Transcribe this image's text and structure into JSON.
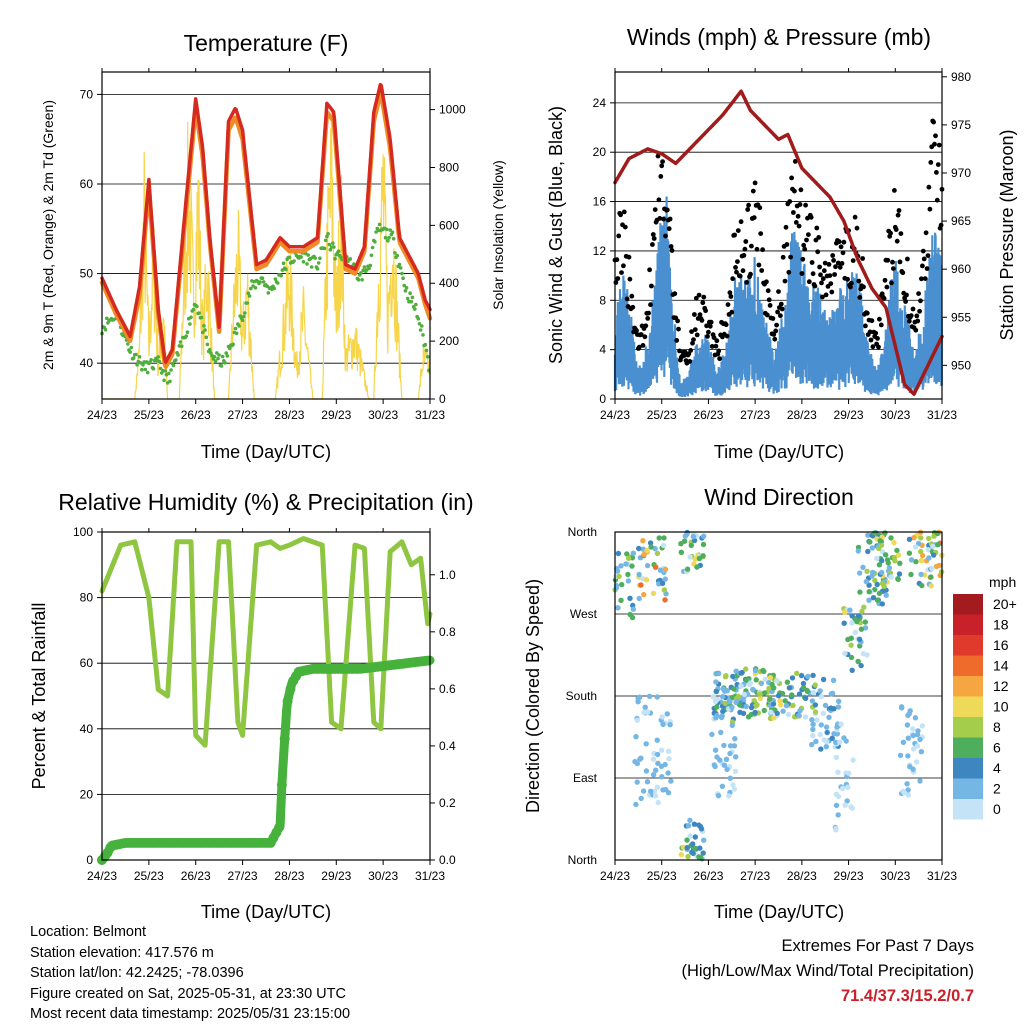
{
  "time_ticks": [
    "24/23",
    "25/23",
    "26/23",
    "27/23",
    "28/23",
    "29/23",
    "30/23",
    "31/23"
  ],
  "colors": {
    "t2m": "#d42a20",
    "t9m": "#f08a24",
    "td": "#4fae3c",
    "solar": "#f7d54a",
    "gust": "#000000",
    "wind": "#4a8fd0",
    "pressure": "#a01c1c",
    "rh": "#8ec641",
    "precip": "#46b13b",
    "extremes": "#c8212a"
  },
  "chart_data": [
    {
      "id": "temperature",
      "type": "line",
      "title": "Temperature (F)",
      "xlabel": "Time (Day/UTC)",
      "ylabel": "2m & 9m T (Red, Orange) & 2m Td (Green)",
      "y2label": "Solar Insolation (Yellow)",
      "ylim": [
        36,
        72.5
      ],
      "y2lim": [
        0,
        1130
      ],
      "yticks": [
        40,
        50,
        60,
        70
      ],
      "y2ticks": [
        0,
        200,
        400,
        600,
        800,
        1000
      ],
      "x_range": [
        0,
        7
      ],
      "series": [
        {
          "key": "t2m",
          "x": [
            0,
            0.3,
            0.6,
            0.8,
            1.0,
            1.2,
            1.35,
            1.5,
            1.8,
            2.0,
            2.15,
            2.3,
            2.5,
            2.7,
            2.85,
            3.0,
            3.3,
            3.5,
            3.8,
            4.0,
            4.3,
            4.6,
            4.8,
            4.95,
            5.2,
            5.4,
            5.6,
            5.8,
            5.95,
            6.15,
            6.35,
            6.55,
            6.75,
            6.9,
            7.0
          ],
          "y": [
            49.5,
            46,
            43,
            48.5,
            60.5,
            46,
            40,
            41.5,
            58.5,
            69.5,
            64,
            54,
            44,
            67,
            68.5,
            66,
            51,
            51.5,
            54,
            53,
            53,
            54,
            69,
            68,
            51,
            50.5,
            53,
            68,
            71.3,
            65,
            54,
            52,
            50,
            47,
            46
          ]
        },
        {
          "key": "t9m",
          "x": [
            0,
            0.3,
            0.6,
            0.8,
            1.0,
            1.2,
            1.35,
            1.5,
            1.8,
            2.0,
            2.15,
            2.3,
            2.5,
            2.7,
            2.85,
            3.0,
            3.3,
            3.5,
            3.8,
            4.0,
            4.3,
            4.6,
            4.8,
            4.95,
            5.2,
            5.4,
            5.6,
            5.8,
            5.95,
            6.15,
            6.35,
            6.55,
            6.75,
            6.9,
            7.0
          ],
          "y": [
            49,
            45.5,
            42.5,
            47.5,
            59.5,
            45.5,
            39.5,
            41,
            57.5,
            68.5,
            63,
            53.5,
            43.5,
            66,
            67.5,
            65,
            50.5,
            51,
            53.5,
            52.5,
            52.5,
            53.5,
            68,
            67,
            50.5,
            50,
            52.5,
            67,
            70.3,
            64,
            53.5,
            51.5,
            49.5,
            46.5,
            45
          ]
        },
        {
          "key": "td",
          "x": [
            0,
            0.3,
            0.6,
            0.9,
            1.2,
            1.4,
            1.7,
            2.0,
            2.3,
            2.6,
            2.9,
            3.2,
            3.4,
            3.6,
            3.8,
            4.0,
            4.3,
            4.6,
            4.8,
            5.0,
            5.2,
            5.5,
            5.7,
            5.9,
            6.2,
            6.5,
            6.7,
            6.9,
            7.0
          ],
          "y": [
            44,
            45.5,
            41.5,
            39.5,
            40,
            38,
            42,
            47,
            41,
            40,
            44,
            48.5,
            49.5,
            48,
            50,
            51.5,
            52,
            51,
            54,
            52,
            52,
            49.5,
            51,
            55,
            54,
            48,
            46,
            42,
            39
          ]
        },
        {
          "key": "solar",
          "x": [
            0,
            0.7,
            0.8,
            0.9,
            1.0,
            1.1,
            1.2,
            1.3,
            1.4,
            1.65,
            1.75,
            1.85,
            1.95,
            2.05,
            2.15,
            2.25,
            2.4,
            2.7,
            2.8,
            2.9,
            3.0,
            3.1,
            3.25,
            3.7,
            3.85,
            4.0,
            4.15,
            4.3,
            4.5,
            4.7,
            4.8,
            4.9,
            5.0,
            5.1,
            5.2,
            5.4,
            5.7,
            5.8,
            5.9,
            6.0,
            6.1,
            6.2,
            6.4,
            6.75,
            6.85,
            7.0
          ],
          "y": [
            0,
            0,
            250,
            900,
            250,
            700,
            150,
            450,
            0,
            0,
            600,
            1050,
            500,
            950,
            300,
            650,
            0,
            0,
            400,
            700,
            300,
            550,
            0,
            0,
            300,
            600,
            150,
            400,
            0,
            0,
            700,
            1100,
            400,
            900,
            200,
            300,
            0,
            0,
            600,
            1050,
            400,
            800,
            0,
            0,
            200,
            150
          ]
        }
      ]
    },
    {
      "id": "winds",
      "type": "scatter",
      "title": "Winds (mph) & Pressure (mb)",
      "xlabel": "Time (Day/UTC)",
      "ylabel": "Sonic Wind & Gust (Blue, Black)",
      "y2label": "Station Pressure (Maroon)",
      "ylim": [
        0,
        26.5
      ],
      "y2lim": [
        946.5,
        980.5
      ],
      "yticks": [
        0,
        4,
        8,
        12,
        16,
        20,
        24
      ],
      "y2ticks": [
        950,
        955,
        960,
        965,
        970,
        975,
        980
      ],
      "x_range": [
        0,
        7
      ],
      "series": [
        {
          "key": "wind",
          "x": [
            0,
            0.15,
            0.3,
            0.5,
            0.7,
            0.9,
            1.0,
            1.1,
            1.2,
            1.4,
            1.6,
            1.8,
            2.0,
            2.2,
            2.4,
            2.6,
            2.8,
            3.0,
            3.2,
            3.4,
            3.6,
            3.8,
            4.0,
            4.3,
            4.6,
            4.9,
            5.2,
            5.4,
            5.6,
            5.8,
            6.0,
            6.2,
            6.4,
            6.6,
            6.8,
            7.0
          ],
          "y": [
            6,
            9,
            7,
            2,
            4,
            10,
            13,
            14,
            8,
            1,
            2,
            5,
            4,
            2,
            4,
            9,
            8,
            10,
            6,
            3,
            6,
            12,
            10,
            8,
            6,
            8,
            9,
            4,
            2,
            6,
            10,
            7,
            3,
            6,
            12,
            10
          ]
        },
        {
          "key": "gust",
          "x": [
            0,
            0.15,
            0.3,
            0.5,
            0.7,
            0.9,
            1.0,
            1.1,
            1.2,
            1.4,
            1.6,
            1.8,
            2.0,
            2.2,
            2.4,
            2.6,
            2.8,
            3.0,
            3.2,
            3.4,
            3.6,
            3.8,
            4.0,
            4.3,
            4.6,
            4.9,
            5.2,
            5.4,
            5.6,
            5.8,
            6.0,
            6.2,
            6.4,
            6.6,
            6.8,
            7.0
          ],
          "y": [
            12,
            14,
            10,
            4,
            8,
            16,
            20,
            18,
            12,
            3,
            4,
            8,
            6,
            4,
            7,
            13,
            12,
            16,
            10,
            6,
            10,
            17,
            14,
            12,
            10,
            12,
            13,
            6,
            5,
            10,
            15,
            11,
            6,
            10,
            20,
            18
          ]
        },
        {
          "key": "pressure",
          "x": [
            0,
            0.3,
            0.7,
            1.0,
            1.3,
            1.7,
            2.0,
            2.3,
            2.7,
            2.9,
            3.2,
            3.5,
            3.7,
            4.0,
            4.3,
            4.6,
            4.9,
            5.2,
            5.5,
            5.8,
            6.0,
            6.2,
            6.4,
            6.6,
            6.8,
            7.0
          ],
          "y": [
            969,
            971.5,
            972.5,
            972,
            971,
            973,
            974.5,
            976,
            978.5,
            976.5,
            975,
            973.5,
            974,
            970.5,
            969,
            967.5,
            965,
            961,
            958,
            956,
            952,
            948,
            947,
            949,
            951,
            953
          ]
        }
      ]
    },
    {
      "id": "humidity",
      "type": "line",
      "title": "Relative Humidity (%) & Precipitation (in)",
      "xlabel": "Time (Day/UTC)",
      "ylabel": "Percent & Total Rainfall",
      "ylim": [
        0,
        100
      ],
      "y2lim": [
        0,
        1.15
      ],
      "yticks": [
        0,
        20,
        40,
        60,
        80,
        100
      ],
      "y2ticks": [
        "0.0",
        "0.2",
        "0.4",
        "0.6",
        "0.8",
        "1.0"
      ],
      "x_range": [
        0,
        7
      ],
      "series": [
        {
          "key": "rh",
          "x": [
            0,
            0.4,
            0.7,
            1.0,
            1.2,
            1.4,
            1.6,
            1.9,
            2.0,
            2.2,
            2.5,
            2.7,
            2.9,
            3.0,
            3.3,
            3.6,
            3.8,
            4.0,
            4.3,
            4.7,
            4.9,
            5.1,
            5.4,
            5.6,
            5.8,
            5.95,
            6.15,
            6.4,
            6.6,
            6.8,
            6.95,
            7.0
          ],
          "y": [
            82,
            96,
            97,
            80,
            52,
            50,
            97,
            97,
            38,
            35,
            97,
            97,
            42,
            38,
            96,
            97,
            95,
            96,
            98,
            96,
            42,
            40,
            96,
            95,
            42,
            40,
            94,
            97,
            90,
            92,
            72,
            75
          ]
        },
        {
          "key": "precip",
          "x": [
            0,
            0.1,
            0.2,
            0.5,
            1.0,
            2.0,
            3.0,
            3.6,
            3.8,
            3.85,
            3.95,
            4.05,
            4.2,
            4.5,
            5.0,
            5.5,
            6.0,
            6.5,
            7.0
          ],
          "y": [
            0,
            0.02,
            0.05,
            0.06,
            0.06,
            0.06,
            0.06,
            0.06,
            0.12,
            0.3,
            0.55,
            0.62,
            0.66,
            0.67,
            0.67,
            0.67,
            0.68,
            0.69,
            0.7
          ]
        }
      ]
    },
    {
      "id": "direction",
      "type": "scatter",
      "title": "Wind Direction",
      "xlabel": "Time (Day/UTC)",
      "ylabel": "Direction (Colored By Speed)",
      "yticks": [
        "North",
        "East",
        "South",
        "West",
        "North"
      ],
      "ylim": [
        0,
        360
      ],
      "x_range": [
        0,
        7
      ],
      "legend": {
        "title": "mph",
        "labels": [
          "20+",
          "18",
          "16",
          "14",
          "12",
          "10",
          "8",
          "6",
          "4",
          "2",
          "0"
        ],
        "colors": [
          "#a31b1e",
          "#c8212a",
          "#e03a2c",
          "#ef6b2c",
          "#f6a640",
          "#eed959",
          "#a3cd4a",
          "#4fae5e",
          "#3d86bf",
          "#74b6e4",
          "#c4e3f6"
        ]
      }
    }
  ],
  "info": {
    "location": "Location: Belmont",
    "elevation": "Station elevation: 417.576 m",
    "latlon": "Station lat/lon: 42.2425; -78.0396",
    "created": "Figure created on Sat, 2025-05-31, at 23:30 UTC",
    "recent": "Most recent data timestamp: 2025/05/31 23:15:00"
  },
  "extremes": {
    "line1": "Extremes For Past 7 Days",
    "line2": "(High/Low/Max Wind/Total Precipitation)",
    "values": "71.4/37.3/15.2/0.7"
  }
}
